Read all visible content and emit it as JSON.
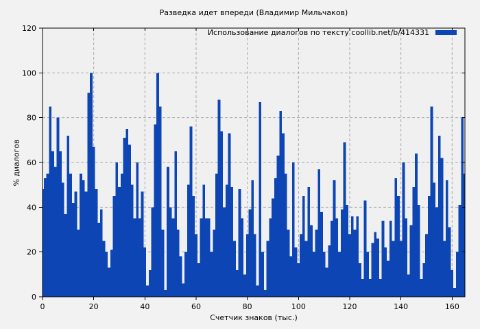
{
  "chart_data": {
    "type": "bar",
    "title": "Разведка идет впереди (Владимир Мильчаков)",
    "legend": "Использование диалогов по тексту  coollib.net/b/414331",
    "xlabel": "Счетчик знаков (тыс.)",
    "ylabel": "% диалогов",
    "xlim": [
      0,
      165
    ],
    "ylim": [
      0,
      120
    ],
    "x_ticks": [
      0,
      20,
      40,
      60,
      80,
      100,
      120,
      140,
      160
    ],
    "y_ticks": [
      0,
      20,
      40,
      60,
      80,
      100,
      120
    ],
    "grid": true,
    "legend_position": "top-right",
    "x_step": 1,
    "values": [
      48,
      53,
      55,
      85,
      65,
      58,
      80,
      65,
      51,
      37,
      72,
      55,
      42,
      47,
      30,
      55,
      52,
      47,
      91,
      100,
      67,
      48,
      33,
      39,
      25,
      20,
      13,
      21,
      45,
      60,
      49,
      55,
      71,
      75,
      68,
      50,
      35,
      60,
      35,
      47,
      22,
      5,
      12,
      40,
      77,
      100,
      85,
      30,
      3,
      58,
      40,
      35,
      65,
      30,
      18,
      6,
      20,
      50,
      76,
      45,
      28,
      15,
      35,
      50,
      35,
      35,
      20,
      30,
      55,
      88,
      74,
      40,
      50,
      73,
      49,
      25,
      12,
      48,
      35,
      10,
      28,
      39,
      52,
      28,
      5,
      87,
      20,
      3,
      25,
      35,
      44,
      53,
      63,
      83,
      73,
      55,
      30,
      18,
      60,
      22,
      15,
      28,
      45,
      25,
      49,
      32,
      20,
      30,
      57,
      38,
      20,
      13,
      23,
      34,
      52,
      35,
      20,
      39,
      69,
      41,
      28,
      36,
      30,
      36,
      15,
      8,
      43,
      20,
      8,
      24,
      29,
      26,
      8,
      34,
      22,
      16,
      34,
      25,
      53,
      45,
      25,
      60,
      35,
      10,
      32,
      49,
      64,
      41,
      8,
      15,
      28,
      45,
      85,
      51,
      40,
      72,
      62,
      25,
      52,
      31,
      12,
      4,
      20,
      41,
      80,
      55
    ],
    "colors": {
      "bar": "#0d46b4",
      "background": "#f2f2f2",
      "plot_background": "#f0f0f0",
      "grid": "#a9a9a9",
      "frame": "#000000",
      "text": "#000000"
    }
  }
}
